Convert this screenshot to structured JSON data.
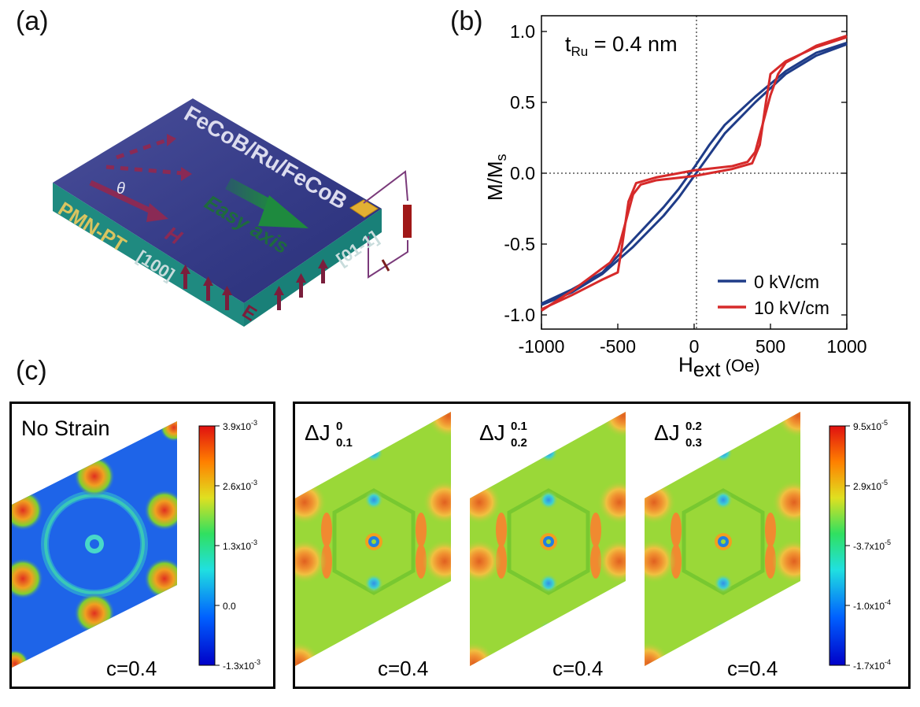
{
  "panel_labels": {
    "a": "(a)",
    "b": "(b)",
    "c": "(c)"
  },
  "panel_a": {
    "top_layer": "FeCoB/Ru/FeCoB",
    "substrate": "PMN-PT",
    "dir_100": "[100]",
    "dir_01m1": "[01-1]",
    "easy_axis": "Easy axis",
    "field": "H",
    "angle": "θ",
    "efield": "E",
    "colors": {
      "top": "#3b3f8c",
      "side": "#1f8a80",
      "arrow": "#7a1e3c",
      "easy": "#1e7a3e",
      "pad": "#e2b033"
    }
  },
  "chart_data": {
    "type": "line",
    "title": "",
    "annotation": {
      "main": "t",
      "sub": "Ru",
      "rest": " = 0.4 nm"
    },
    "xlabel": {
      "main": "H",
      "sub": "ext",
      "rest": " (Oe)"
    },
    "ylabel": "M/M",
    "ylabel_sub": "s",
    "xlim": [
      -1000,
      1000
    ],
    "ylim": [
      -1.1,
      1.1
    ],
    "xticks": [
      -1000,
      -500,
      0,
      500,
      1000
    ],
    "xtick_labels": [
      "-1000",
      "-500",
      "0",
      "500",
      "1000"
    ],
    "yticks": [
      1.0,
      0.5,
      0.0,
      -0.5,
      -1.0
    ],
    "ytick_labels": [
      "1.0",
      "0.5",
      "0.0",
      "-0.5",
      "-1.0"
    ],
    "legend_position": "bottom-right",
    "series": [
      {
        "name": "0 kV/cm",
        "color": "#1f3c88",
        "branches": [
          {
            "x": [
              -1000,
              -800,
              -600,
              -400,
              -200,
              -100,
              0,
              100,
              200,
              400,
              600,
              800,
              1000
            ],
            "y": [
              -0.93,
              -0.84,
              -0.71,
              -0.52,
              -0.3,
              -0.17,
              -0.02,
              0.13,
              0.28,
              0.5,
              0.7,
              0.83,
              0.91
            ]
          },
          {
            "x": [
              -1000,
              -800,
              -600,
              -400,
              -200,
              -100,
              0,
              100,
              200,
              400,
              600,
              800,
              1000
            ],
            "y": [
              -0.92,
              -0.82,
              -0.7,
              -0.47,
              -0.24,
              -0.11,
              0.04,
              0.2,
              0.34,
              0.54,
              0.72,
              0.85,
              0.92
            ]
          }
        ]
      },
      {
        "name": "10 kV/cm",
        "color": "#d62a2a",
        "branches": [
          {
            "x": [
              1000,
              800,
              600,
              500,
              470,
              430,
              380,
              250,
              0,
              -250,
              -350,
              -400,
              -450,
              -500,
              -550,
              -600,
              -800,
              -1000
            ],
            "y": [
              0.96,
              0.89,
              0.79,
              0.7,
              0.5,
              0.2,
              0.07,
              0.03,
              -0.02,
              -0.05,
              -0.08,
              -0.15,
              -0.35,
              -0.55,
              -0.63,
              -0.67,
              -0.83,
              -0.97
            ]
          },
          {
            "x": [
              -1000,
              -800,
              -600,
              -500,
              -470,
              -430,
              -380,
              -250,
              0,
              250,
              350,
              400,
              450,
              500,
              550,
              600,
              800,
              1000
            ],
            "y": [
              -0.96,
              -0.86,
              -0.75,
              -0.7,
              -0.5,
              -0.2,
              -0.07,
              -0.03,
              0.02,
              0.05,
              0.08,
              0.15,
              0.35,
              0.55,
              0.7,
              0.78,
              0.9,
              0.97
            ]
          }
        ]
      }
    ]
  },
  "panel_c": {
    "no_strain": {
      "title": "No Strain",
      "c_label": "c=0.4",
      "colorbar_ticks": [
        "3.9x10",
        "2.6x10",
        "1.3x10",
        "0.0",
        "-1.3x10"
      ],
      "colorbar_exps": [
        "-3",
        "-3",
        "-3",
        "",
        "-3"
      ]
    },
    "delta_maps": [
      {
        "sym": "ΔJ",
        "sup": "0",
        "sub": "0.1",
        "c_label": "c=0.4"
      },
      {
        "sym": "ΔJ",
        "sup": "0.1",
        "sub": "0.2",
        "c_label": "c=0.4"
      },
      {
        "sym": "ΔJ",
        "sup": "0.2",
        "sub": "0.3",
        "c_label": "c=0.4"
      }
    ],
    "delta_colorbar_ticks": [
      "9.5x10",
      "2.9x10",
      "-3.7x10",
      "-1.0x10",
      "-1.7x10"
    ],
    "delta_colorbar_exps": [
      "-5",
      "-5",
      "-5",
      "-4",
      "-4"
    ]
  }
}
